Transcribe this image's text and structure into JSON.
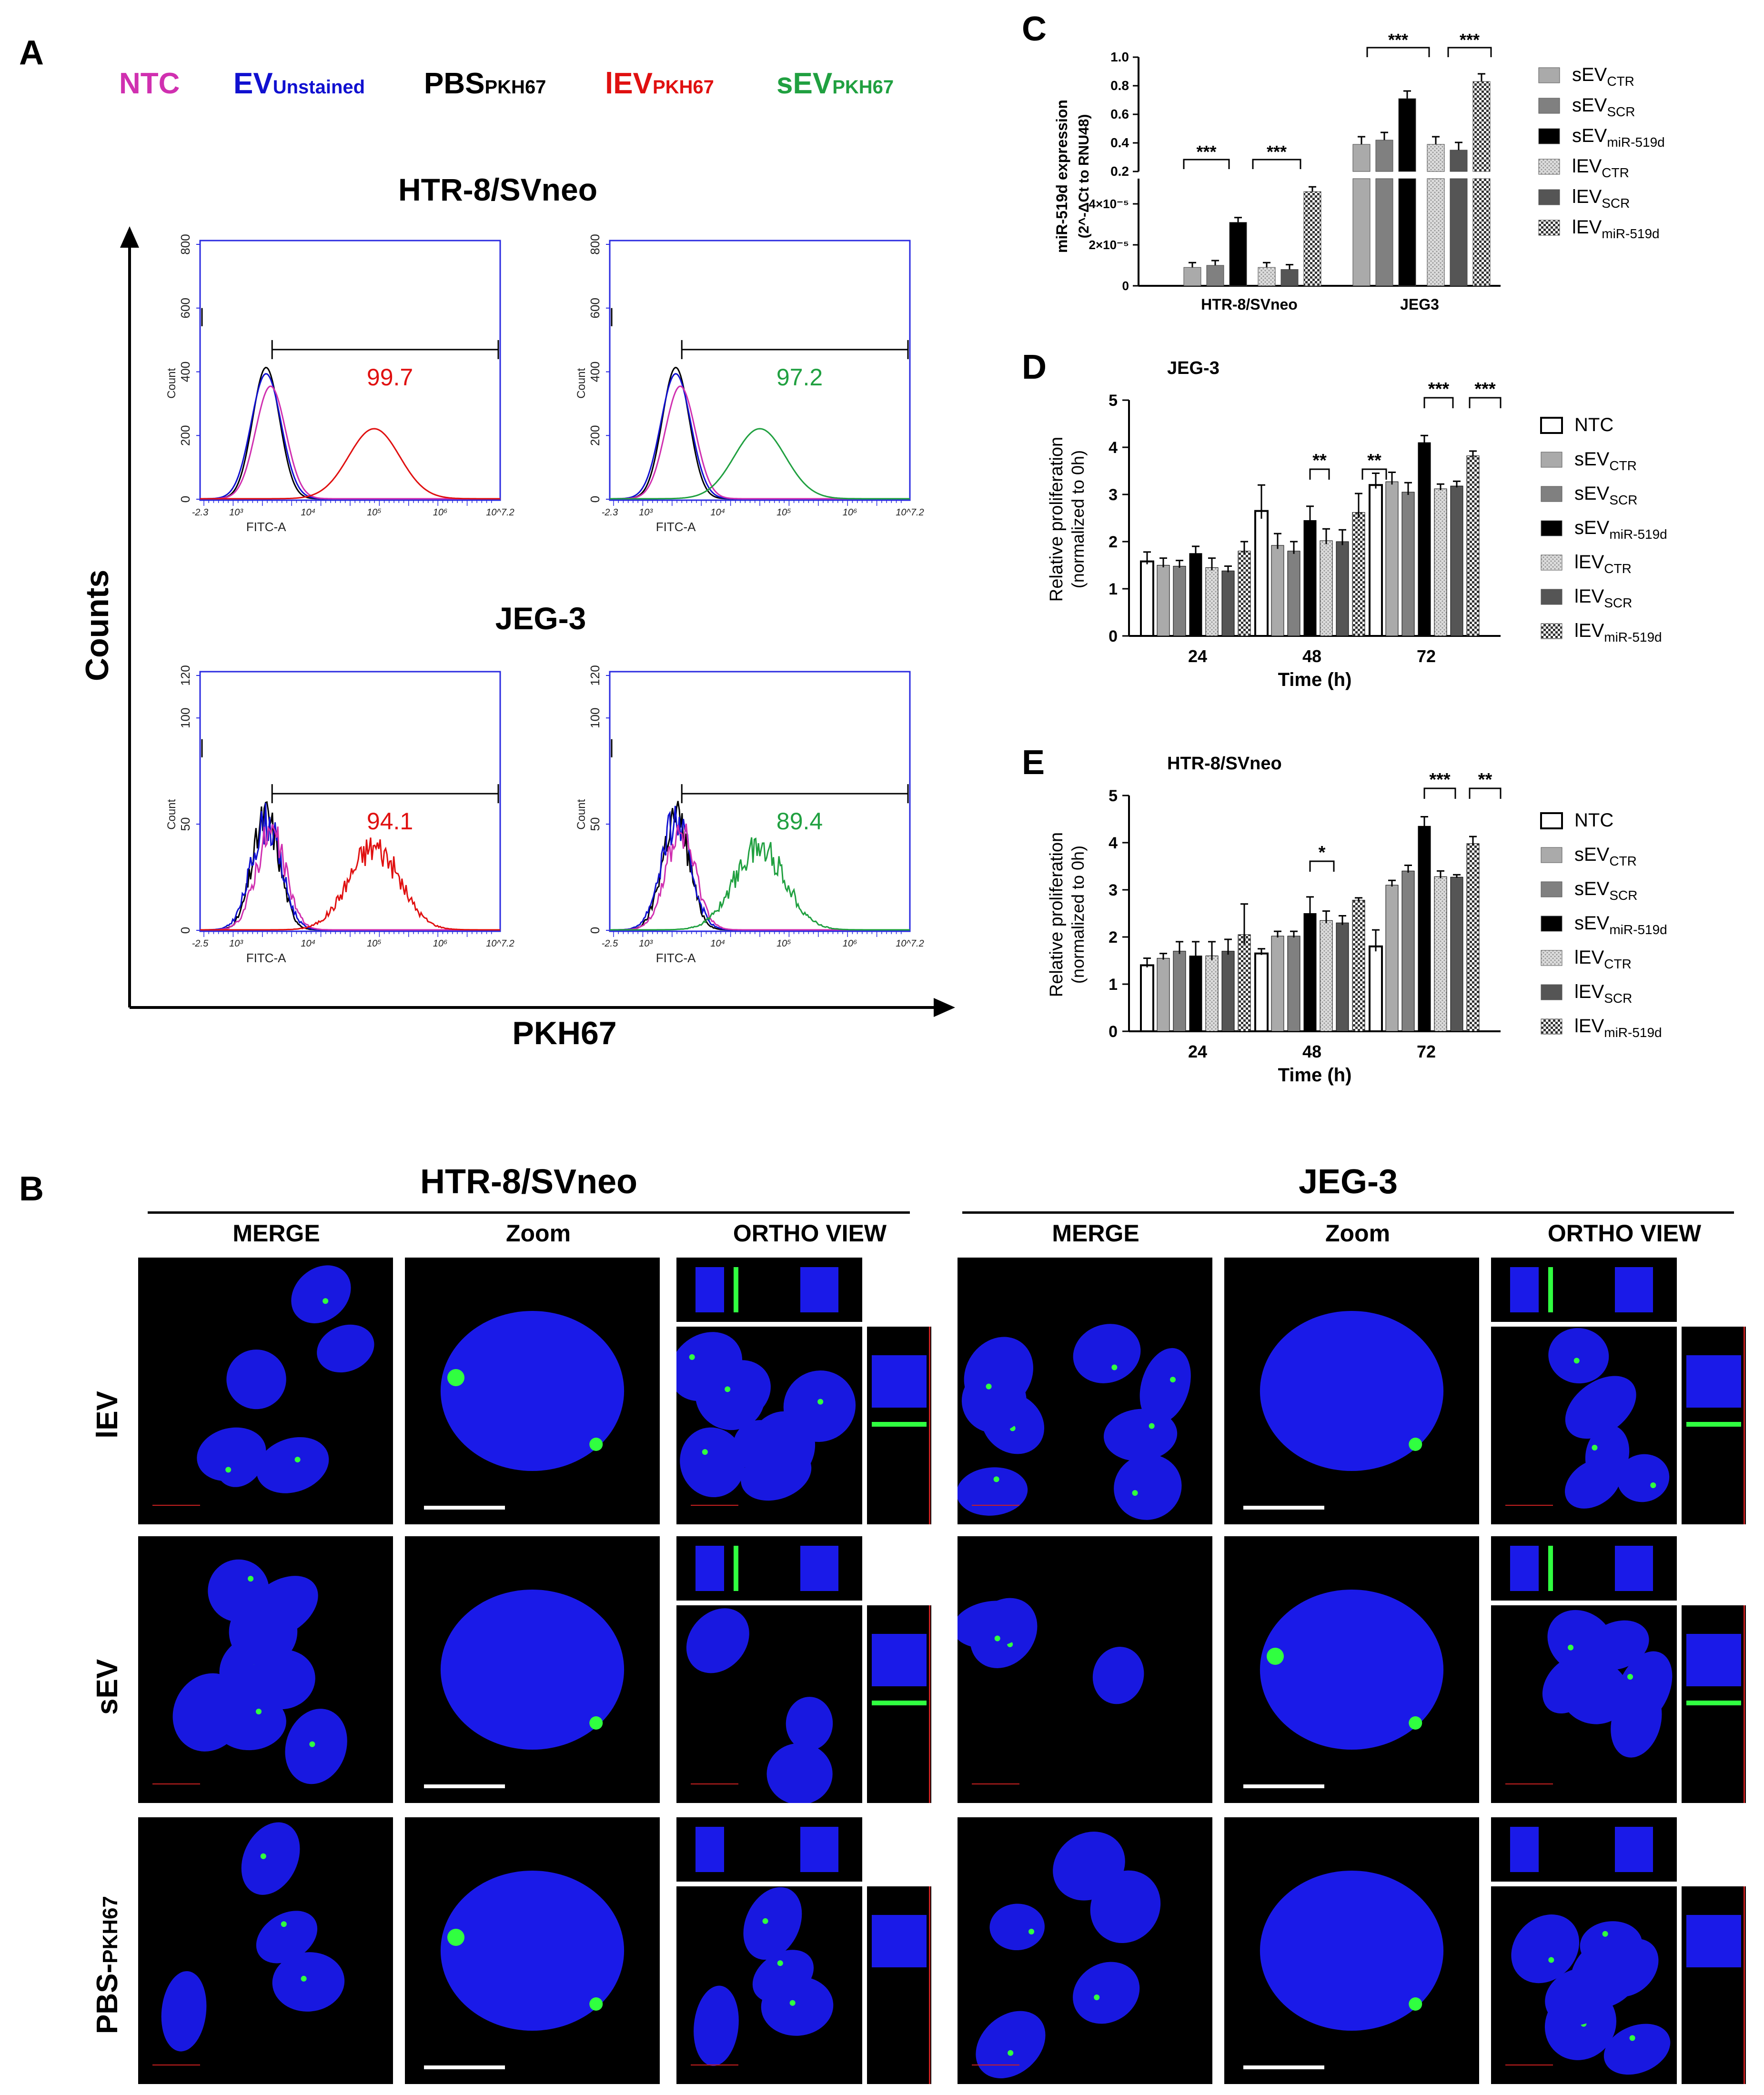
{
  "panelA": {
    "letter": "A",
    "legend": [
      {
        "main": "NTC",
        "sub": "",
        "color": "#d030b0"
      },
      {
        "main": "EV",
        "sub": "Unstained",
        "color": "#1010d0"
      },
      {
        "main": "PBS",
        "sub": "PKH67",
        "color": "#000000"
      },
      {
        "main": "lEV",
        "sub": "PKH67",
        "color": "#e01010"
      },
      {
        "main": "sEV",
        "sub": "PKH67",
        "color": "#20a040"
      }
    ],
    "row1_title": "HTR-8/SVneo",
    "row2_title": "JEG-3",
    "y_axis": "Counts",
    "x_axis": "PKH67",
    "plots": [
      {
        "id": "htr_lev",
        "value": "99.7",
        "color": "#e01010",
        "ymax": 800,
        "yticks": [
          "0",
          "200",
          "400",
          "600",
          "800"
        ],
        "xfirst": "-2.3"
      },
      {
        "id": "htr_sev",
        "value": "97.2",
        "color": "#20a040",
        "ymax": 800,
        "yticks": [
          "0",
          "200",
          "400",
          "600",
          "800"
        ],
        "xfirst": "-2.3"
      },
      {
        "id": "jeg_lev",
        "value": "94.1",
        "color": "#e01010",
        "ymax": 120,
        "yticks": [
          "0",
          "50",
          "100",
          "120"
        ],
        "xfirst": "-2.5"
      },
      {
        "id": "jeg_sev",
        "value": "89.4",
        "color": "#20a040",
        "ymax": 120,
        "yticks": [
          "0",
          "50",
          "100",
          "120"
        ],
        "xfirst": "-2.5"
      }
    ],
    "plot_xlabel": "FITC-A",
    "plot_ylabel": "Count",
    "x_ticks": [
      "10³",
      "10⁴",
      "10⁵",
      "10⁶",
      "10^7.2"
    ]
  },
  "chart_data": [
    {
      "panel": "C",
      "type": "bar",
      "ylabel_line1": "miR-519d expression",
      "ylabel_line2": "(2^-ΔCt to RNU48)",
      "categories": [
        "HTR-8/SVneo",
        "JEG3"
      ],
      "series": [
        {
          "name": "sEV_CTR",
          "values": [
            9e-06,
            0.39
          ]
        },
        {
          "name": "sEV_SCR",
          "values": [
            1e-05,
            0.42
          ]
        },
        {
          "name": "sEV_miR-519d",
          "values": [
            3.1e-05,
            0.71
          ]
        },
        {
          "name": "lEV_CTR",
          "values": [
            9e-06,
            0.39
          ]
        },
        {
          "name": "lEV_SCR",
          "values": [
            8e-06,
            0.35
          ]
        },
        {
          "name": "lEV_miR-519d",
          "values": [
            4.6e-05,
            0.83
          ]
        }
      ],
      "yticks_top": [
        "0.2",
        "0.4",
        "0.6",
        "0.8",
        "1.0"
      ],
      "yticks_bottom": [
        "0",
        "2×10⁻⁵",
        "4×10⁻⁵"
      ],
      "significance": [
        "***",
        "***",
        "***",
        "***"
      ]
    },
    {
      "panel": "D",
      "type": "bar",
      "title": "JEG-3",
      "ylabel_line1": "Relative proliferation",
      "ylabel_line2": "(normalized to 0h)",
      "xlabel": "Time (h)",
      "categories": [
        "24",
        "48",
        "72"
      ],
      "ylim": [
        0,
        5
      ],
      "yticks": [
        "0",
        "1",
        "2",
        "3",
        "4",
        "5"
      ],
      "series": [
        {
          "name": "NTC",
          "values": [
            1.58,
            2.65,
            3.2
          ]
        },
        {
          "name": "sEV_CTR",
          "values": [
            1.5,
            1.92,
            3.27
          ]
        },
        {
          "name": "sEV_SCR",
          "values": [
            1.48,
            1.8,
            3.05
          ]
        },
        {
          "name": "sEV_miR-519d",
          "values": [
            1.75,
            2.45,
            4.1
          ]
        },
        {
          "name": "lEV_CTR",
          "values": [
            1.45,
            2.02,
            3.12
          ]
        },
        {
          "name": "lEV_SCR",
          "values": [
            1.38,
            2.0,
            3.18
          ]
        },
        {
          "name": "lEV_miR-519d",
          "values": [
            1.8,
            2.62,
            3.82
          ]
        }
      ],
      "errors": [
        [
          0.2,
          0.55,
          0.25
        ],
        [
          0.15,
          0.25,
          0.2
        ],
        [
          0.12,
          0.2,
          0.2
        ],
        [
          0.15,
          0.3,
          0.15
        ],
        [
          0.2,
          0.25,
          0.1
        ],
        [
          0.1,
          0.25,
          0.1
        ],
        [
          0.2,
          0.4,
          0.1
        ]
      ],
      "significance": [
        {
          "time": "48",
          "label": "**"
        },
        {
          "time": "48",
          "label": "**"
        },
        {
          "time": "72",
          "label": "***"
        },
        {
          "time": "72",
          "label": "***"
        }
      ]
    },
    {
      "panel": "E",
      "type": "bar",
      "title": "HTR-8/SVneo",
      "ylabel_line1": "Relative proliferation",
      "ylabel_line2": "(normalized to 0h)",
      "xlabel": "Time (h)",
      "categories": [
        "24",
        "48",
        "72"
      ],
      "ylim": [
        0,
        5
      ],
      "yticks": [
        "0",
        "1",
        "2",
        "3",
        "4",
        "5"
      ],
      "series": [
        {
          "name": "NTC",
          "values": [
            1.4,
            1.65,
            1.8
          ]
        },
        {
          "name": "sEV_CTR",
          "values": [
            1.55,
            2.02,
            3.1
          ]
        },
        {
          "name": "sEV_SCR",
          "values": [
            1.7,
            2.02,
            3.4
          ]
        },
        {
          "name": "sEV_miR-519d",
          "values": [
            1.6,
            2.5,
            4.35
          ]
        },
        {
          "name": "lEV_CTR",
          "values": [
            1.6,
            2.35,
            3.28
          ]
        },
        {
          "name": "lEV_SCR",
          "values": [
            1.7,
            2.3,
            3.27
          ]
        },
        {
          "name": "lEV_miR-519d",
          "values": [
            2.05,
            2.78,
            3.98
          ]
        }
      ],
      "errors": [
        [
          0.15,
          0.1,
          0.35
        ],
        [
          0.1,
          0.1,
          0.1
        ],
        [
          0.2,
          0.1,
          0.12
        ],
        [
          0.3,
          0.35,
          0.2
        ],
        [
          0.3,
          0.2,
          0.12
        ],
        [
          0.25,
          0.15,
          0.05
        ],
        [
          0.65,
          0.05,
          0.15
        ]
      ],
      "significance": [
        {
          "time": "48",
          "label": "*"
        },
        {
          "time": "72",
          "label": "***"
        },
        {
          "time": "72",
          "label": "**"
        }
      ]
    }
  ],
  "panelC": {
    "letter": "C"
  },
  "panelD": {
    "letter": "D"
  },
  "panelE": {
    "letter": "E"
  },
  "legend_series": [
    {
      "main": "sEV",
      "sub": "CTR",
      "fill": "#aaaaaa",
      "pattern": false
    },
    {
      "main": "sEV",
      "sub": "SCR",
      "fill": "#808080",
      "pattern": false
    },
    {
      "main": "sEV",
      "sub": "miR-519d",
      "fill": "#000000",
      "pattern": false
    },
    {
      "main": "lEV",
      "sub": "CTR",
      "fill": "#cccccc",
      "pattern": "dots"
    },
    {
      "main": "lEV",
      "sub": "SCR",
      "fill": "#555555",
      "pattern": false
    },
    {
      "main": "lEV",
      "sub": "miR-519d",
      "fill": "#bbbbbb",
      "pattern": "check"
    }
  ],
  "legend_ntc": {
    "main": "NTC",
    "sub": ""
  },
  "panelB": {
    "letter": "B",
    "left_title": "HTR-8/SVneo",
    "right_title": "JEG-3",
    "col_headers": [
      "MERGE",
      "Zoom",
      "ORTHO VIEW"
    ],
    "rows": [
      {
        "main": "lEV",
        "sub": ""
      },
      {
        "main": "sEV",
        "sub": ""
      },
      {
        "main": "PBS-",
        "sub": "PKH67"
      }
    ]
  }
}
